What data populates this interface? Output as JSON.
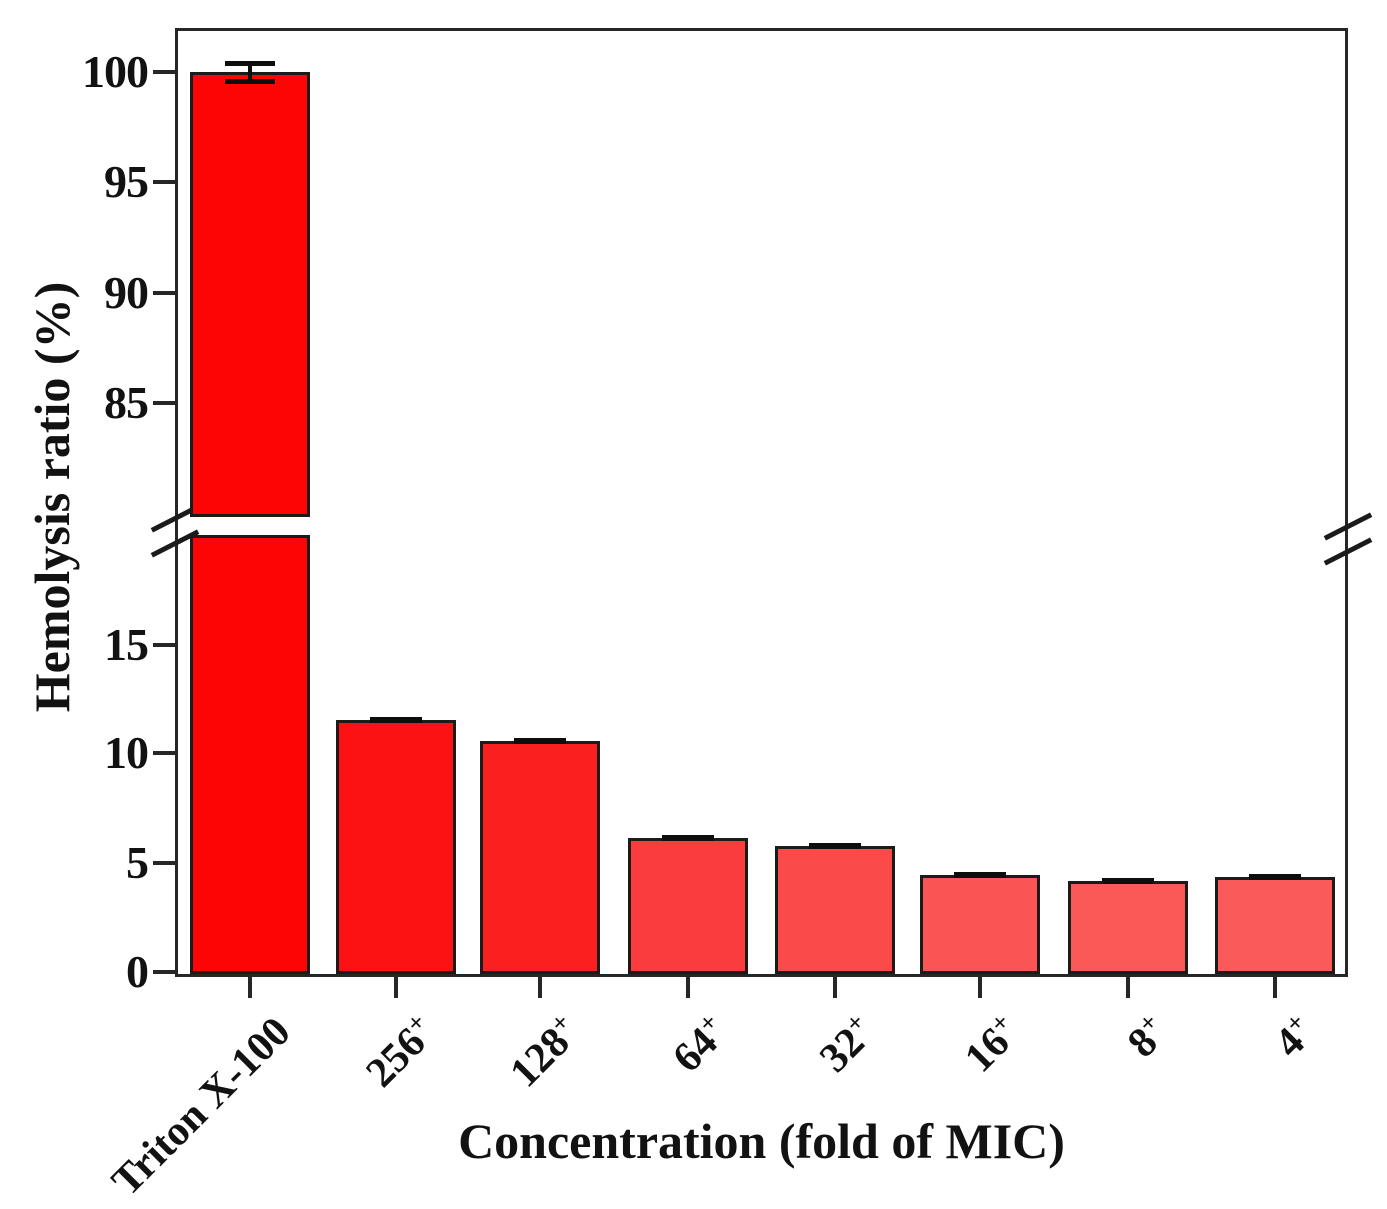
{
  "chart_data": {
    "type": "bar",
    "title": "",
    "xlabel": "Concentration (fold of MIC)",
    "ylabel": "Hemolysis ratio (%)",
    "categories": [
      "Triton X-100",
      "256+",
      "128+",
      "64+",
      "32+",
      "16+",
      "8+",
      "4+"
    ],
    "values": [
      100,
      11.6,
      10.6,
      6.2,
      5.8,
      4.5,
      4.2,
      4.4
    ],
    "errors": [
      0.4,
      0.15,
      0.12,
      0.15,
      0.12,
      0.1,
      0.1,
      0.08
    ],
    "bar_colors": [
      "#fe0505",
      "#fc1212",
      "#fc1f1f",
      "#fb3c3c",
      "#fb4a4a",
      "#fb5454",
      "#fb5858",
      "#fb5a5a"
    ],
    "y_ticks_upper": [
      100,
      95,
      90,
      85
    ],
    "y_ticks_lower": [
      15,
      10,
      5,
      0
    ],
    "ylim_lower": [
      0,
      20
    ],
    "ylim_upper": [
      80,
      102
    ],
    "axis_break": {
      "between_low": 20,
      "between_high": 80
    },
    "grid": false,
    "legend": null
  },
  "colors": {
    "axis": "#262626",
    "text": "#121212",
    "error_bar": "#0d0d0d"
  }
}
